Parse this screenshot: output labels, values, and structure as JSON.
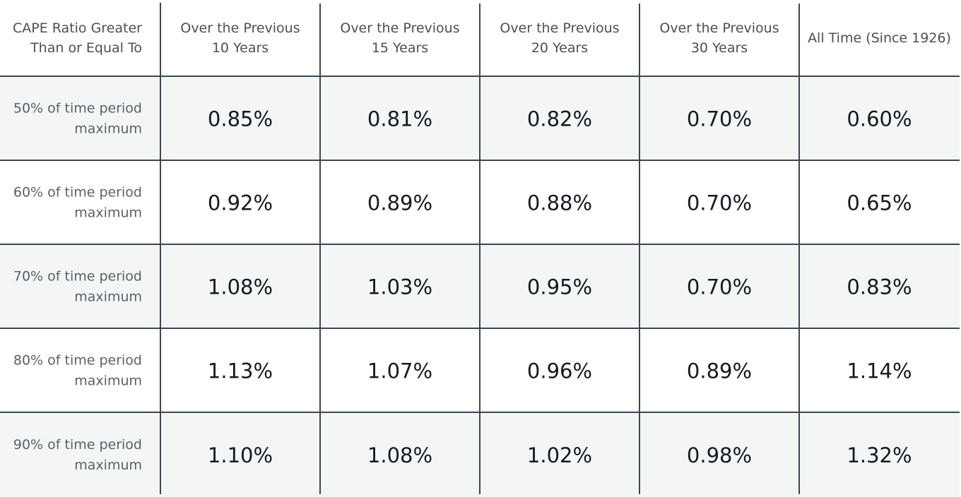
{
  "chart_data": {
    "type": "table",
    "title": "",
    "corner_header": [
      "CAPE Ratio Greater",
      "Than or Equal To"
    ],
    "columns": [
      {
        "lines": [
          "Over the Previous",
          "10 Years"
        ]
      },
      {
        "lines": [
          "Over the Previous",
          "15 Years"
        ]
      },
      {
        "lines": [
          "Over the Previous",
          "20 Years"
        ]
      },
      {
        "lines": [
          "Over the Previous",
          "30 Years"
        ]
      },
      {
        "lines": [
          "All Time (Since 1926)"
        ]
      }
    ],
    "rows": [
      {
        "label": [
          "50% of time period",
          "maximum"
        ],
        "values": [
          "0.85%",
          "0.81%",
          "0.82%",
          "0.70%",
          "0.60%"
        ]
      },
      {
        "label": [
          "60% of time period",
          "maximum"
        ],
        "values": [
          "0.92%",
          "0.89%",
          "0.88%",
          "0.70%",
          "0.65%"
        ]
      },
      {
        "label": [
          "70% of time period",
          "maximum"
        ],
        "values": [
          "1.08%",
          "1.03%",
          "0.95%",
          "0.70%",
          "0.83%"
        ]
      },
      {
        "label": [
          "80% of time period",
          "maximum"
        ],
        "values": [
          "1.13%",
          "1.07%",
          "0.96%",
          "0.89%",
          "1.14%"
        ]
      },
      {
        "label": [
          "90% of time period",
          "maximum"
        ],
        "values": [
          "1.10%",
          "1.08%",
          "1.02%",
          "0.98%",
          "1.32%"
        ]
      }
    ],
    "colors": {
      "stripe": "#f4f6f6",
      "background": "#ffffff",
      "rule": "#3c4457",
      "header_text": "#4a4f5c",
      "label_text": "#5a5f6b",
      "value_text": "#151922"
    }
  }
}
